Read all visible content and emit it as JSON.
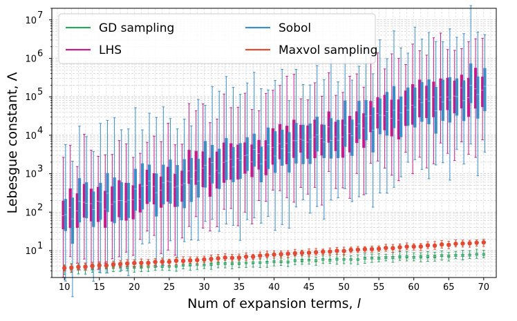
{
  "chart_data": {
    "type": "box",
    "title": "",
    "xlabel": "Num of expansion terms, l",
    "xlabel_text": "Num of expansion terms, ",
    "xlabel_symbol": "l",
    "ylabel": "Lebesgue constant, Λ",
    "yscale": "log",
    "xlim": [
      8.2,
      71.8
    ],
    "ylim": [
      2,
      20000000
    ],
    "grid": true,
    "x_ticks": [
      10,
      15,
      20,
      25,
      30,
      35,
      40,
      45,
      50,
      55,
      60,
      65,
      70
    ],
    "x_tick_labels": [
      "10",
      "15",
      "20",
      "25",
      "30",
      "35",
      "40",
      "45",
      "50",
      "55",
      "60",
      "65",
      "70"
    ],
    "y_ticks": [
      {
        "value": 10,
        "base": "10",
        "exp": "1"
      },
      {
        "value": 100,
        "base": "10",
        "exp": "2"
      },
      {
        "value": 1000,
        "base": "10",
        "exp": "3"
      },
      {
        "value": 10000,
        "base": "10",
        "exp": "4"
      },
      {
        "value": 100000,
        "base": "10",
        "exp": "5"
      },
      {
        "value": 1000000,
        "base": "10",
        "exp": "6"
      },
      {
        "value": 10000000,
        "base": "10",
        "exp": "7"
      }
    ],
    "legend": {
      "position": "top-left",
      "entries": [
        {
          "label": "GD sampling",
          "color": "#2ca25f"
        },
        {
          "label": "LHS",
          "color": "#c51b8a"
        },
        {
          "label": "Sobol",
          "color": "#3a8fc6"
        },
        {
          "label": "Maxvol sampling",
          "color": "#e34a33"
        }
      ]
    },
    "x_range": [
      10,
      70
    ],
    "series": [
      {
        "name": "GD sampling",
        "kind": "box",
        "color": "#2ca25f",
        "offset": 0,
        "median_start": 3.2,
        "median_end": 8.0,
        "spread": 0.045,
        "whisker_spread": 0.1
      },
      {
        "name": "LHS",
        "kind": "box",
        "color": "#c51b8a",
        "offset": -0.16,
        "median_start": 80,
        "median_end": 180000,
        "spread": 0.55,
        "whisker_spread": 1.3
      },
      {
        "name": "Sobol",
        "kind": "box",
        "color": "#3a8fc6",
        "offset": 0.16,
        "median_start": 90,
        "median_end": 160000,
        "spread": 0.65,
        "whisker_spread": 1.6
      },
      {
        "name": "Maxvol sampling",
        "kind": "point",
        "color": "#e34a33",
        "offset": 0,
        "median_start": 3.6,
        "median_end": 16.5,
        "spread": 0.035,
        "whisker_spread": 0.08
      }
    ]
  }
}
